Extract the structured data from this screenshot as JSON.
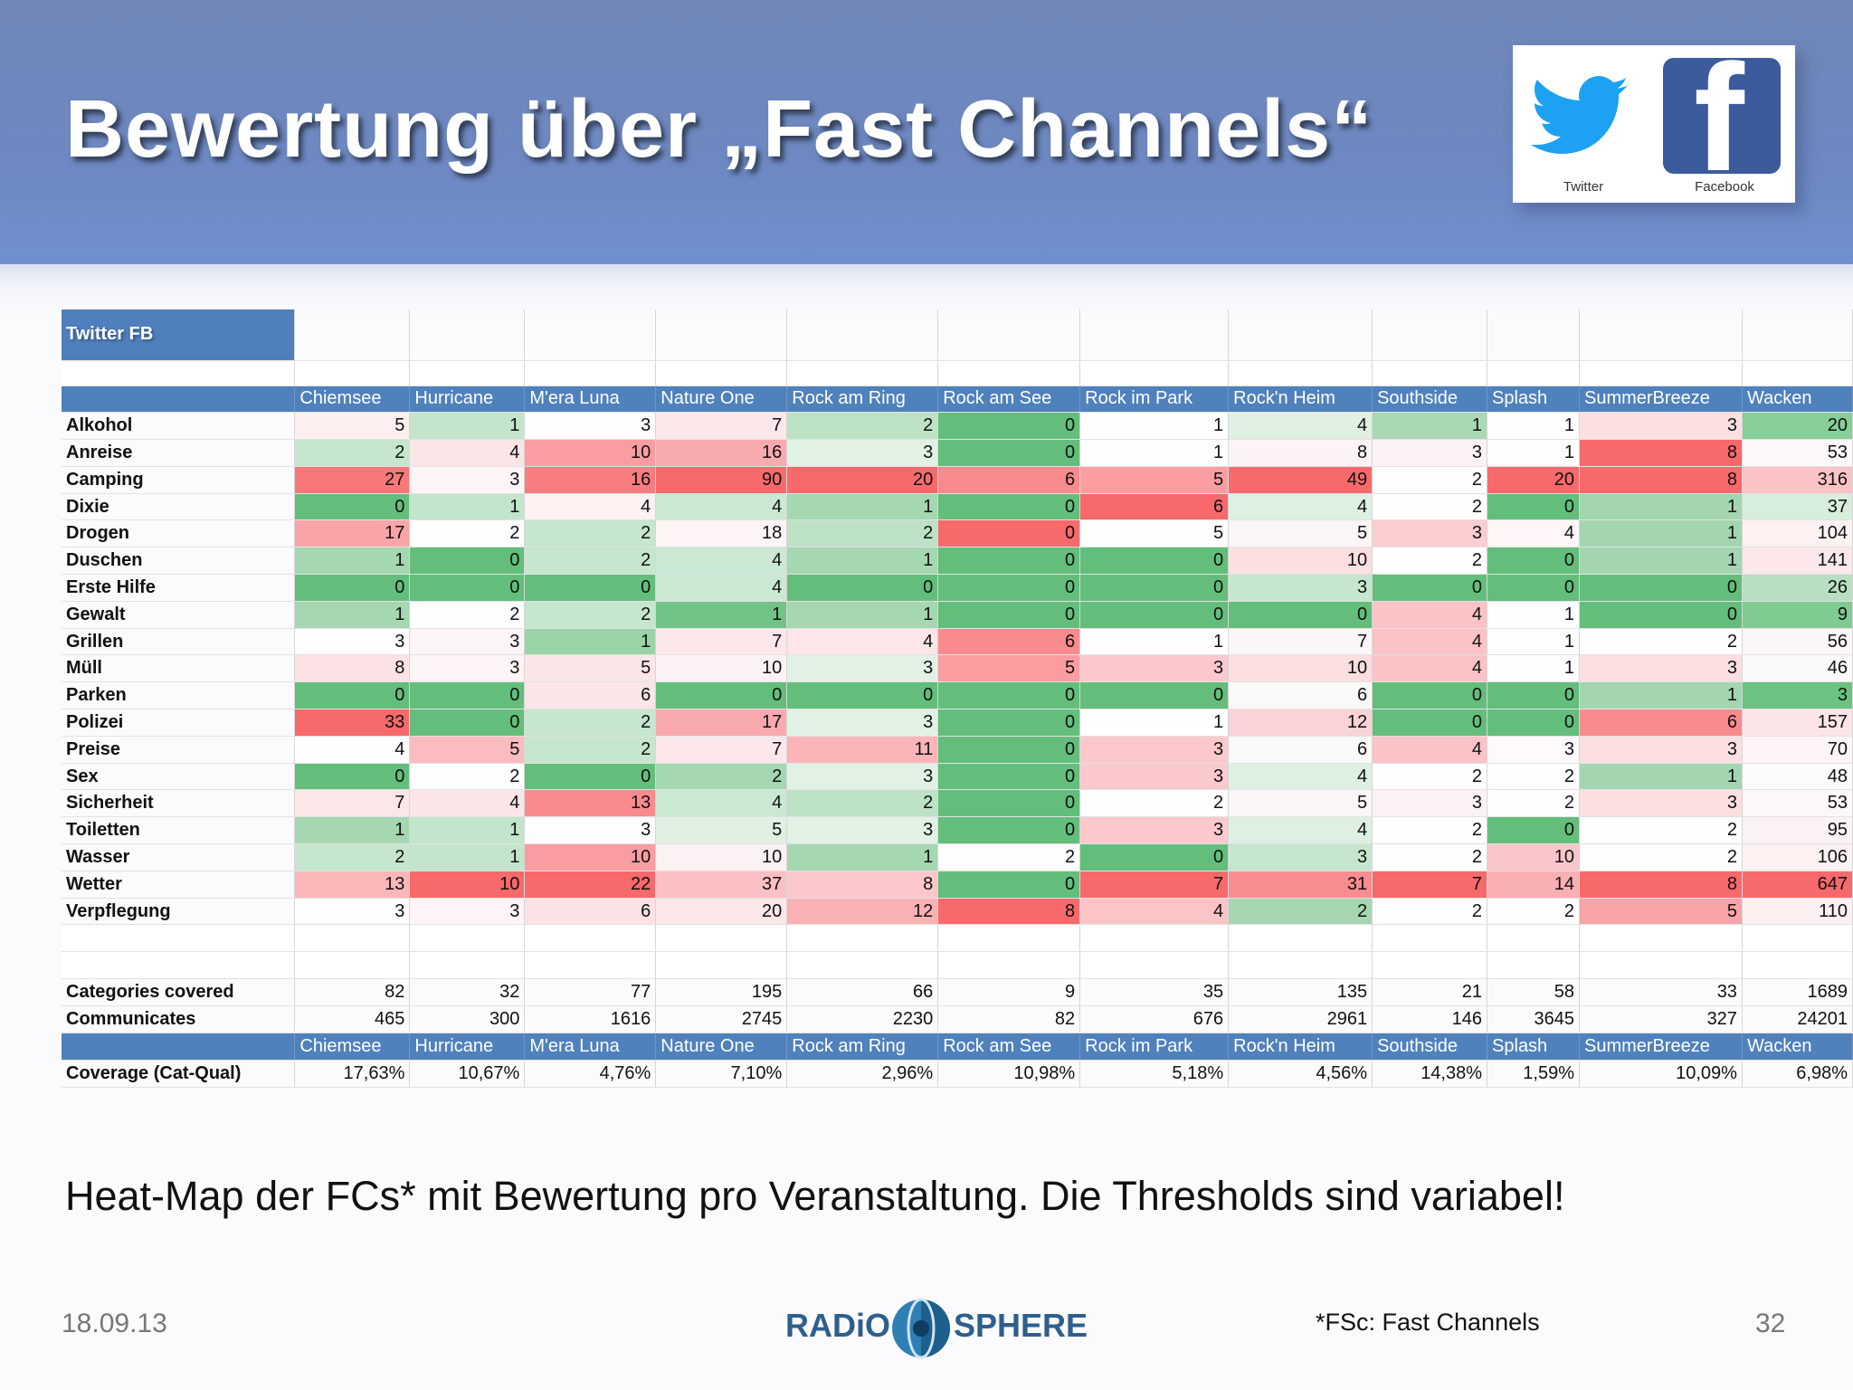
{
  "slide": {
    "title": "Bewertung über „Fast Channels“",
    "caption": "Heat-Map der FCs* mit Bewertung pro Veranstaltung. Die Thresholds sind variabel!",
    "date": "18.09.13",
    "footnote": "*FSc: Fast Channels",
    "page_number": "32",
    "logo_left": "RADiO",
    "logo_right": "SPHERE"
  },
  "social": {
    "twitter_label": "Twitter",
    "facebook_label": "Facebook",
    "twitter_color": "#1da1f2",
    "facebook_color": "#3b5b9c"
  },
  "table": {
    "title": "Twitter FB",
    "columns": [
      "Chiemsee",
      "Hurricane",
      "M'era Luna",
      "Nature One",
      "Rock am Ring",
      "Rock am See",
      "Rock im Park",
      "Rock'n Heim",
      "Southside",
      "Splash",
      "SummerBreeze",
      "Wacken"
    ],
    "rows": [
      {
        "label": "Alkohol",
        "values": [
          "5",
          "1",
          "3",
          "7",
          "2",
          "0",
          "1",
          "4",
          "1",
          "1",
          "3",
          "20"
        ],
        "colors": [
          "#fdeff0",
          "#c3e5cb",
          "#fefcfc",
          "#fce8ea",
          "#bde2c5",
          "#63be7b",
          "#fdfefd",
          "#e0f1e4",
          "#a9d9b4",
          "#fcfdfc",
          "#fcdfe1",
          "#88ce99"
        ]
      },
      {
        "label": "Anreise",
        "values": [
          "2",
          "4",
          "10",
          "16",
          "3",
          "0",
          "1",
          "8",
          "3",
          "1",
          "8",
          "53"
        ],
        "colors": [
          "#c5e6cd",
          "#fce5e7",
          "#fa9da2",
          "#f9aaaf",
          "#e1f2e5",
          "#63be7b",
          "#fdfefd",
          "#fbf3f4",
          "#fdf2f3",
          "#fcfdfc",
          "#f8696b",
          "#fdf7f7"
        ]
      },
      {
        "label": "Camping",
        "values": [
          "27",
          "3",
          "16",
          "90",
          "20",
          "6",
          "5",
          "49",
          "2",
          "20",
          "8",
          "316"
        ],
        "colors": [
          "#f8787a",
          "#fdf4f5",
          "#f87d80",
          "#f8696b",
          "#f8696b",
          "#f98a8d",
          "#fa9ea2",
          "#f8696b",
          "#fdfefd",
          "#f8696b",
          "#f8696b",
          "#fbc3c6"
        ]
      },
      {
        "label": "Dixie",
        "values": [
          "0",
          "1",
          "4",
          "4",
          "1",
          "0",
          "6",
          "4",
          "2",
          "0",
          "1",
          "37"
        ],
        "colors": [
          "#63be7b",
          "#c3e5cb",
          "#fdf1f2",
          "#cbe9d2",
          "#a5d7b1",
          "#63be7b",
          "#f8696b",
          "#ddf0e2",
          "#fdfefd",
          "#63be7b",
          "#a3d6b0",
          "#d7eedc"
        ]
      },
      {
        "label": "Drogen",
        "values": [
          "17",
          "2",
          "2",
          "18",
          "2",
          "0",
          "5",
          "5",
          "3",
          "4",
          "1",
          "104"
        ],
        "colors": [
          "#f9a4a8",
          "#fdfefd",
          "#c6e6ce",
          "#fcf4f5",
          "#bde2c5",
          "#f8696b",
          "#fdfefd",
          "#fbf5f6",
          "#fbccd0",
          "#fef6f7",
          "#a3d6b0",
          "#fdf1f2"
        ]
      },
      {
        "label": "Duschen",
        "values": [
          "1",
          "0",
          "2",
          "4",
          "1",
          "0",
          "0",
          "10",
          "2",
          "0",
          "1",
          "141"
        ],
        "colors": [
          "#a5d7b1",
          "#63be7b",
          "#c6e6ce",
          "#cbe9d2",
          "#a5d7b1",
          "#63be7b",
          "#63be7b",
          "#fcdfe1",
          "#fdfefd",
          "#63be7b",
          "#a3d6b0",
          "#fce8ea"
        ]
      },
      {
        "label": "Erste Hilfe",
        "values": [
          "0",
          "0",
          "0",
          "4",
          "0",
          "0",
          "0",
          "3",
          "0",
          "0",
          "0",
          "26"
        ],
        "colors": [
          "#63be7b",
          "#63be7b",
          "#63be7b",
          "#cbe9d2",
          "#63be7b",
          "#63be7b",
          "#63be7b",
          "#c6e6cd",
          "#63be7b",
          "#63be7b",
          "#63be7b",
          "#b8dfc2"
        ]
      },
      {
        "label": "Gewalt",
        "values": [
          "1",
          "2",
          "2",
          "1",
          "1",
          "0",
          "0",
          "0",
          "4",
          "1",
          "0",
          "9"
        ],
        "colors": [
          "#a5d7b1",
          "#fdfefd",
          "#c6e6ce",
          "#72c387",
          "#a5d7b1",
          "#63be7b",
          "#63be7b",
          "#63be7b",
          "#fbc3c6",
          "#fcfdfc",
          "#63be7b",
          "#7fcb92"
        ]
      },
      {
        "label": "Grillen",
        "values": [
          "3",
          "3",
          "1",
          "7",
          "4",
          "6",
          "1",
          "7",
          "4",
          "1",
          "2",
          "56"
        ],
        "colors": [
          "#fdfefd",
          "#fdf4f5",
          "#9ad3a7",
          "#fce8ea",
          "#fde6e8",
          "#f98a8d",
          "#fdfefd",
          "#fbf7f7",
          "#fbc3c6",
          "#fcfdfc",
          "#fdfefd",
          "#fdf6f6"
        ]
      },
      {
        "label": "Müll",
        "values": [
          "8",
          "3",
          "5",
          "10",
          "3",
          "5",
          "3",
          "10",
          "4",
          "1",
          "3",
          "46"
        ],
        "colors": [
          "#fce2e4",
          "#fdf4f5",
          "#fce5e7",
          "#fdf2f3",
          "#e1f2e5",
          "#fa9da0",
          "#fbc9cc",
          "#fbdee0",
          "#fbc3c6",
          "#fcfdfc",
          "#fcdfe1",
          "#f9fbf9"
        ]
      },
      {
        "label": "Parken",
        "values": [
          "0",
          "0",
          "6",
          "0",
          "0",
          "0",
          "0",
          "6",
          "0",
          "0",
          "1",
          "3"
        ],
        "colors": [
          "#63be7b",
          "#63be7b",
          "#fce5e7",
          "#63be7b",
          "#63be7b",
          "#63be7b",
          "#63be7b",
          "#fbf8f8",
          "#63be7b",
          "#63be7b",
          "#a3d6b0",
          "#6bc281"
        ]
      },
      {
        "label": "Polizei",
        "values": [
          "33",
          "0",
          "2",
          "17",
          "3",
          "0",
          "1",
          "12",
          "0",
          "0",
          "6",
          "157"
        ],
        "colors": [
          "#f8696b",
          "#63be7b",
          "#c6e6ce",
          "#f9aaaf",
          "#e1f2e5",
          "#63be7b",
          "#fdfefd",
          "#fad3d6",
          "#63be7b",
          "#63be7b",
          "#f98b8e",
          "#fce5e7"
        ]
      },
      {
        "label": "Preise",
        "values": [
          "4",
          "5",
          "2",
          "7",
          "11",
          "0",
          "3",
          "6",
          "4",
          "3",
          "3",
          "70"
        ],
        "colors": [
          "#fdfefd",
          "#fbbcbf",
          "#c6e6ce",
          "#fce8ea",
          "#fbb5b8",
          "#63be7b",
          "#fbc9cc",
          "#fbf8f8",
          "#fbc3c6",
          "#fef9fa",
          "#fcdfe1",
          "#fdf5f5"
        ]
      },
      {
        "label": "Sex",
        "values": [
          "0",
          "2",
          "0",
          "2",
          "3",
          "0",
          "3",
          "4",
          "2",
          "2",
          "1",
          "48"
        ],
        "colors": [
          "#63be7b",
          "#fdfefd",
          "#63be7b",
          "#a5d7b1",
          "#e1f2e5",
          "#63be7b",
          "#fbc9cc",
          "#ddf0e2",
          "#fdfefd",
          "#fdfefd",
          "#a3d6b0",
          "#fbfcfb"
        ]
      },
      {
        "label": "Sicherheit",
        "values": [
          "7",
          "4",
          "13",
          "4",
          "2",
          "0",
          "2",
          "5",
          "3",
          "2",
          "3",
          "53"
        ],
        "colors": [
          "#fce6e8",
          "#fce5e7",
          "#f98b8e",
          "#cbe9d2",
          "#bde2c5",
          "#63be7b",
          "#fdfefd",
          "#fbf5f6",
          "#fdf2f3",
          "#fdfefd",
          "#fcdfe1",
          "#fdf7f7"
        ]
      },
      {
        "label": "Toiletten",
        "values": [
          "1",
          "1",
          "3",
          "5",
          "3",
          "0",
          "3",
          "4",
          "2",
          "0",
          "2",
          "95"
        ],
        "colors": [
          "#a5d7b1",
          "#c3e5cb",
          "#fefcfc",
          "#e0f1e4",
          "#e1f2e5",
          "#63be7b",
          "#fbc9cc",
          "#ddf0e2",
          "#fdfefd",
          "#63be7b",
          "#fdfefd",
          "#fdf2f3"
        ]
      },
      {
        "label": "Wasser",
        "values": [
          "2",
          "1",
          "10",
          "10",
          "1",
          "2",
          "0",
          "3",
          "2",
          "10",
          "2",
          "106"
        ],
        "colors": [
          "#c5e6cd",
          "#c3e5cb",
          "#fa9da2",
          "#fdf2f3",
          "#a5d7b1",
          "#fdfefd",
          "#63be7b",
          "#c6e6cd",
          "#fdfefd",
          "#fac6c9",
          "#fdfefd",
          "#fdf1f2"
        ]
      },
      {
        "label": "Wetter",
        "values": [
          "13",
          "10",
          "22",
          "37",
          "8",
          "0",
          "7",
          "31",
          "7",
          "14",
          "8",
          "647"
        ],
        "colors": [
          "#fab7ba",
          "#f8696b",
          "#f8696b",
          "#fbc0c3",
          "#fcc8cb",
          "#63be7b",
          "#f8696b",
          "#f98c8f",
          "#f8696b",
          "#fab0b3",
          "#f8696b",
          "#f8696b"
        ]
      },
      {
        "label": "Verpflegung",
        "values": [
          "3",
          "3",
          "6",
          "20",
          "12",
          "8",
          "4",
          "2",
          "2",
          "2",
          "5",
          "110"
        ],
        "colors": [
          "#fdfefd",
          "#fdf4f5",
          "#fce2e4",
          "#fce7e9",
          "#fbb1b4",
          "#f8696b",
          "#fbc4c7",
          "#a6d7b2",
          "#fdfefd",
          "#fdfefd",
          "#f9a4a7",
          "#fdf0f1"
        ]
      }
    ],
    "summary": [
      {
        "label": "Categories covered",
        "values": [
          "82",
          "32",
          "77",
          "195",
          "66",
          "9",
          "35",
          "135",
          "21",
          "58",
          "33",
          "1689"
        ]
      },
      {
        "label": "Communicates",
        "values": [
          "465",
          "300",
          "1616",
          "2745",
          "2230",
          "82",
          "676",
          "2961",
          "146",
          "3645",
          "327",
          "24201"
        ]
      }
    ],
    "coverage": {
      "label": "Coverage (Cat-Qual)",
      "values": [
        "17,63%",
        "10,67%",
        "4,76%",
        "7,10%",
        "2,96%",
        "10,98%",
        "5,18%",
        "4,56%",
        "14,38%",
        "1,59%",
        "10,09%",
        "6,98%"
      ]
    }
  }
}
